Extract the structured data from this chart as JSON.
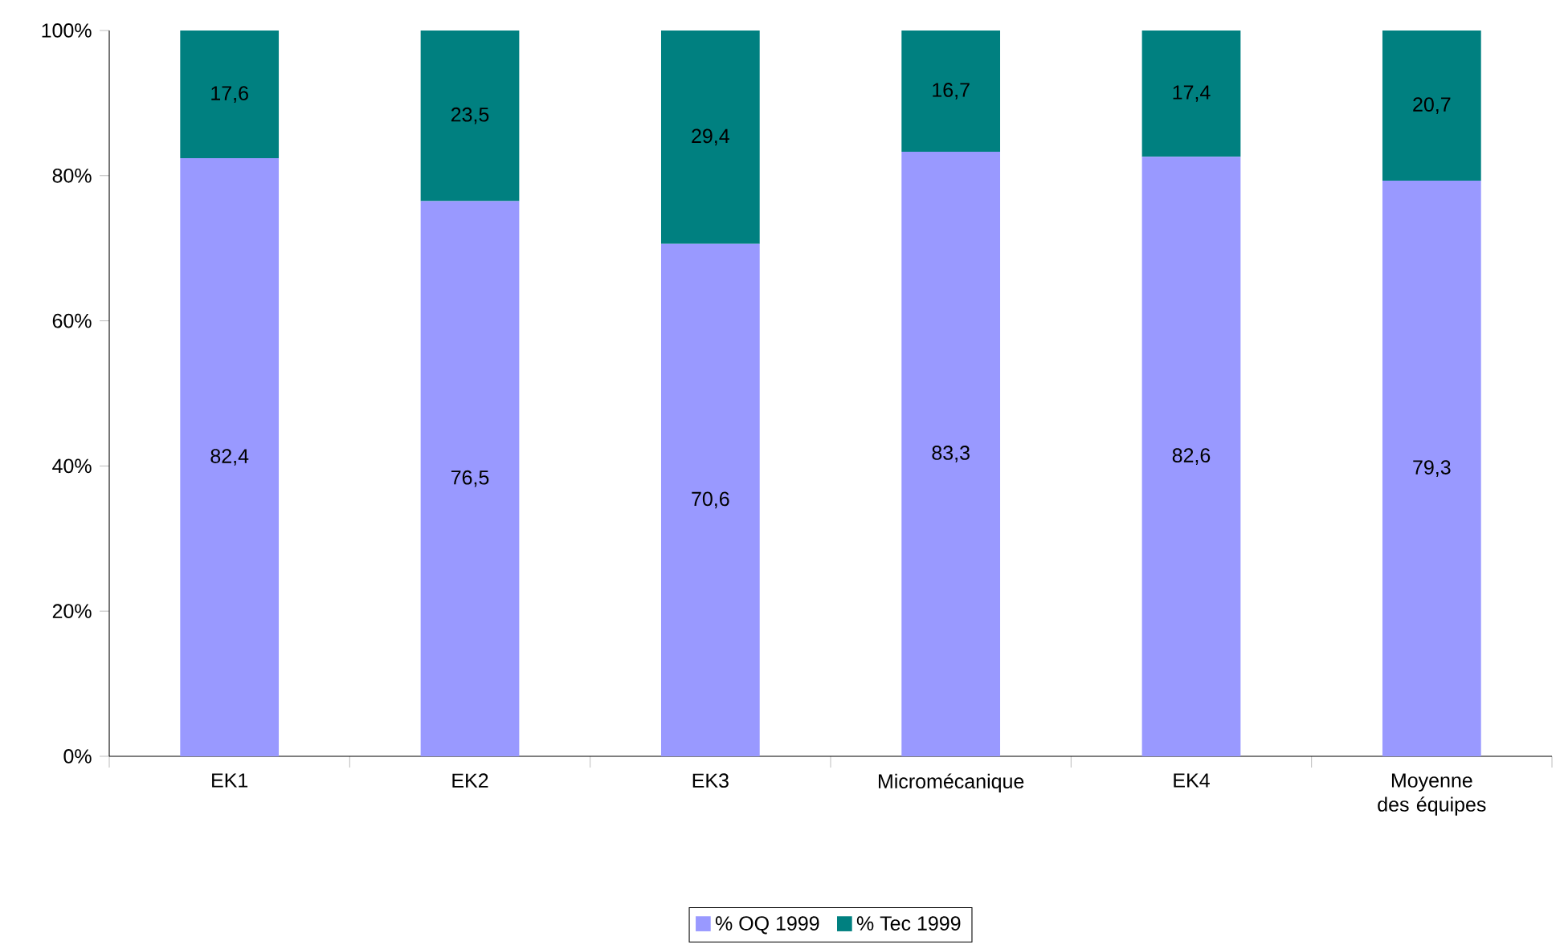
{
  "chart_data": {
    "type": "bar",
    "stacked": true,
    "categories": [
      "EK1",
      "EK2",
      "EK3",
      "Micromécanique",
      "EK4",
      "Moyenne des équipes"
    ],
    "series": [
      {
        "name": "% OQ 1999",
        "color": "#9999ff",
        "values": [
          82.4,
          76.5,
          70.6,
          83.3,
          82.6,
          79.3
        ],
        "value_labels": [
          "82,4",
          "76,5",
          "70,6",
          "83,3",
          "82,6",
          "79,3"
        ]
      },
      {
        "name": "% Tec 1999",
        "color": "#008080",
        "values": [
          17.6,
          23.5,
          29.4,
          16.7,
          17.4,
          20.7
        ],
        "value_labels": [
          "17,6",
          "23,5",
          "29,4",
          "16,7",
          "17,4",
          "20,7"
        ]
      }
    ],
    "ylim": [
      0,
      100
    ],
    "yticks": [
      {
        "value": 0,
        "label": "0%"
      },
      {
        "value": 20,
        "label": "20%"
      },
      {
        "value": 40,
        "label": "40%"
      },
      {
        "value": 60,
        "label": "60%"
      },
      {
        "value": 80,
        "label": "80%"
      },
      {
        "value": 100,
        "label": "100%"
      }
    ],
    "grid": false,
    "legend": "bottom"
  }
}
